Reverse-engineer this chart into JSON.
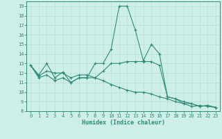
{
  "xlabel": "Humidex (Indice chaleur)",
  "bg_color": "#ceeee8",
  "line_color": "#2e8b78",
  "grid_color": "#b8ddd8",
  "xlim": [
    -0.5,
    23.5
  ],
  "ylim": [
    8,
    19.5
  ],
  "yticks": [
    8,
    9,
    10,
    11,
    12,
    13,
    14,
    15,
    16,
    17,
    18,
    19
  ],
  "xticks": [
    0,
    1,
    2,
    3,
    4,
    5,
    6,
    7,
    8,
    9,
    10,
    11,
    12,
    13,
    14,
    15,
    16,
    17,
    18,
    19,
    20,
    21,
    22,
    23
  ],
  "line1_x": [
    0,
    1,
    2,
    3,
    4,
    5,
    6,
    7,
    8,
    9,
    10,
    11,
    12,
    13,
    14,
    15,
    16,
    17,
    18,
    19,
    20,
    21,
    22,
    23
  ],
  "line1_y": [
    12.8,
    11.8,
    13.0,
    11.5,
    12.1,
    11.0,
    11.5,
    11.5,
    13.0,
    13.0,
    14.5,
    19.0,
    19.0,
    16.5,
    13.3,
    15.0,
    14.0,
    9.5,
    9.3,
    8.8,
    8.8,
    8.5,
    8.6,
    8.4
  ],
  "line2_x": [
    0,
    1,
    2,
    3,
    4,
    5,
    6,
    7,
    8,
    9,
    10,
    11,
    12,
    13,
    14,
    15,
    16,
    17,
    18,
    19,
    20,
    21,
    22,
    23
  ],
  "line2_y": [
    12.8,
    11.7,
    12.2,
    12.0,
    12.0,
    11.5,
    11.8,
    11.8,
    11.5,
    12.2,
    13.0,
    13.0,
    13.2,
    13.2,
    13.2,
    13.2,
    12.8,
    9.5,
    9.3,
    9.0,
    8.8,
    8.5,
    8.6,
    8.4
  ],
  "line3_x": [
    0,
    1,
    2,
    3,
    4,
    5,
    6,
    7,
    8,
    9,
    10,
    11,
    12,
    13,
    14,
    15,
    16,
    17,
    18,
    19,
    20,
    21,
    22,
    23
  ],
  "line3_y": [
    12.8,
    11.5,
    11.8,
    11.2,
    11.5,
    11.0,
    11.5,
    11.5,
    11.5,
    11.2,
    10.8,
    10.5,
    10.2,
    10.0,
    10.0,
    9.8,
    9.5,
    9.3,
    9.0,
    8.8,
    8.5,
    8.6,
    8.5,
    8.4
  ]
}
